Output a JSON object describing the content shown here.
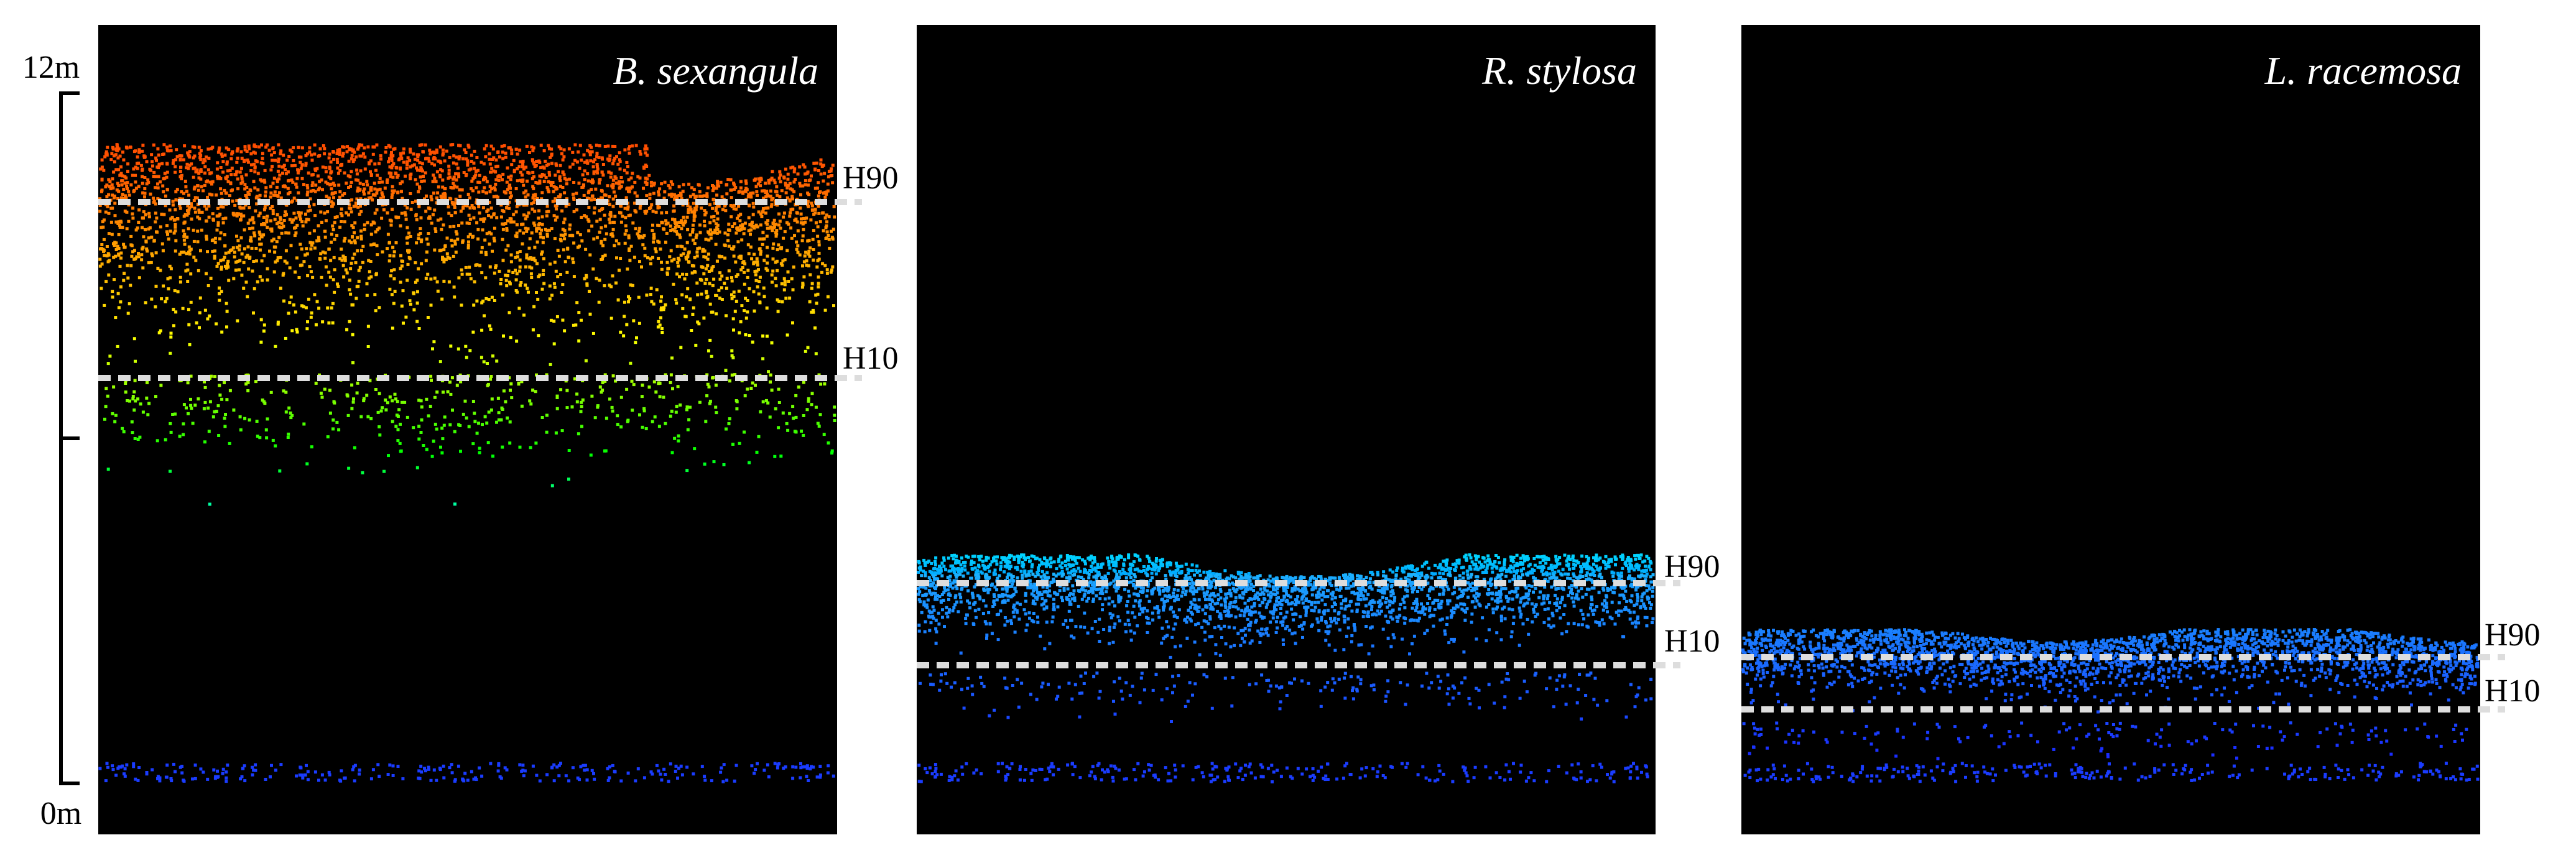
{
  "scale": {
    "top": "12m",
    "bottom": "0m"
  },
  "panels": [
    {
      "title": "B. sexangula",
      "upper": "H90",
      "lower": "H10"
    },
    {
      "title": "R. stylosa",
      "upper": "H90",
      "lower": "H10"
    },
    {
      "title": "L. racemosa",
      "upper": "H90",
      "lower": "H10"
    }
  ]
}
